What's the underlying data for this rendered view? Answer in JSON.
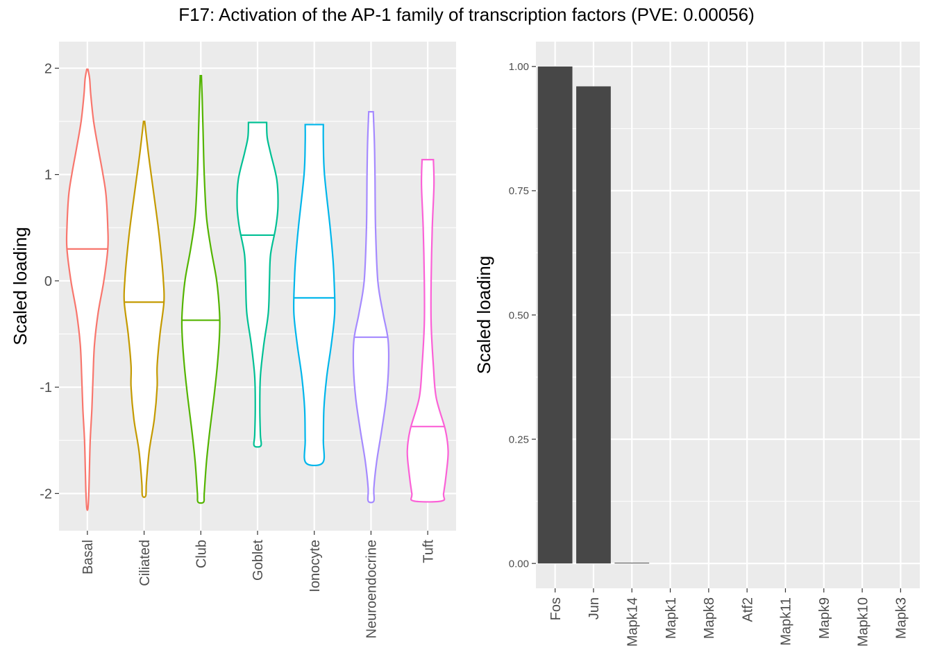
{
  "title": "F17: Activation of the AP-1 family of transcription factors (PVE: 0.00056)",
  "chart_data": [
    {
      "type": "violin",
      "ylabel": "Scaled loading",
      "ylim": [
        -2.35,
        2.25
      ],
      "y_ticks": [
        -2,
        -1,
        0,
        1,
        2
      ],
      "y_tick_labels": [
        "-2",
        "-1",
        "0",
        "1",
        "2"
      ],
      "grid": true,
      "categories": [
        "Basal",
        "Ciliated",
        "Club",
        "Goblet",
        "Ionocyte",
        "Neuroendocrine",
        "Tuft"
      ],
      "colors": [
        "#F8766D",
        "#C49A00",
        "#53B400",
        "#00C094",
        "#00B6EB",
        "#A58AFF",
        "#FB61D7"
      ],
      "medians": [
        0.3,
        -0.2,
        -0.37,
        0.43,
        -0.16,
        -0.53,
        -1.37
      ],
      "ranges": [
        [
          -2.14,
          1.99
        ],
        [
          -2.02,
          1.5
        ],
        [
          -2.08,
          1.93
        ],
        [
          -1.55,
          1.49
        ],
        [
          -1.71,
          1.47
        ],
        [
          -2.07,
          1.59
        ],
        [
          -2.07,
          1.14
        ]
      ],
      "profiles": [
        [
          [
            1.99,
            0.02
          ],
          [
            1.9,
            0.08
          ],
          [
            1.75,
            0.12
          ],
          [
            1.5,
            0.22
          ],
          [
            1.25,
            0.38
          ],
          [
            1.0,
            0.55
          ],
          [
            0.8,
            0.66
          ],
          [
            0.5,
            0.72
          ],
          [
            0.3,
            0.72
          ],
          [
            0.0,
            0.58
          ],
          [
            -0.3,
            0.38
          ],
          [
            -0.6,
            0.25
          ],
          [
            -0.9,
            0.2
          ],
          [
            -1.2,
            0.16
          ],
          [
            -1.5,
            0.1
          ],
          [
            -1.8,
            0.07
          ],
          [
            -2.0,
            0.05
          ],
          [
            -2.14,
            0.02
          ]
        ],
        [
          [
            1.5,
            0.02
          ],
          [
            1.2,
            0.15
          ],
          [
            0.9,
            0.3
          ],
          [
            0.5,
            0.5
          ],
          [
            0.2,
            0.62
          ],
          [
            0.0,
            0.68
          ],
          [
            -0.2,
            0.7
          ],
          [
            -0.5,
            0.56
          ],
          [
            -0.8,
            0.46
          ],
          [
            -1.0,
            0.46
          ],
          [
            -1.3,
            0.36
          ],
          [
            -1.6,
            0.18
          ],
          [
            -1.9,
            0.08
          ],
          [
            -2.02,
            0.06
          ]
        ],
        [
          [
            1.93,
            0.02
          ],
          [
            1.7,
            0.05
          ],
          [
            1.4,
            0.08
          ],
          [
            1.0,
            0.12
          ],
          [
            0.6,
            0.2
          ],
          [
            0.3,
            0.36
          ],
          [
            0.0,
            0.56
          ],
          [
            -0.3,
            0.66
          ],
          [
            -0.5,
            0.66
          ],
          [
            -0.8,
            0.58
          ],
          [
            -1.1,
            0.46
          ],
          [
            -1.4,
            0.32
          ],
          [
            -1.7,
            0.2
          ],
          [
            -2.0,
            0.12
          ],
          [
            -2.08,
            0.1
          ]
        ],
        [
          [
            1.49,
            0.32
          ],
          [
            1.35,
            0.34
          ],
          [
            1.2,
            0.46
          ],
          [
            0.95,
            0.68
          ],
          [
            0.7,
            0.72
          ],
          [
            0.5,
            0.64
          ],
          [
            0.25,
            0.46
          ],
          [
            0.0,
            0.42
          ],
          [
            -0.3,
            0.38
          ],
          [
            -0.6,
            0.22
          ],
          [
            -0.9,
            0.1
          ],
          [
            -1.2,
            0.08
          ],
          [
            -1.45,
            0.1
          ],
          [
            -1.55,
            0.12
          ]
        ],
        [
          [
            1.47,
            0.32
          ],
          [
            1.3,
            0.32
          ],
          [
            1.0,
            0.36
          ],
          [
            0.5,
            0.56
          ],
          [
            0.2,
            0.66
          ],
          [
            0.0,
            0.7
          ],
          [
            -0.3,
            0.72
          ],
          [
            -0.6,
            0.6
          ],
          [
            -0.9,
            0.44
          ],
          [
            -1.2,
            0.34
          ],
          [
            -1.5,
            0.32
          ],
          [
            -1.71,
            0.3
          ]
        ],
        [
          [
            1.59,
            0.08
          ],
          [
            1.3,
            0.12
          ],
          [
            1.0,
            0.14
          ],
          [
            0.5,
            0.16
          ],
          [
            0.0,
            0.24
          ],
          [
            -0.3,
            0.42
          ],
          [
            -0.55,
            0.6
          ],
          [
            -0.8,
            0.62
          ],
          [
            -1.1,
            0.54
          ],
          [
            -1.4,
            0.38
          ],
          [
            -1.7,
            0.2
          ],
          [
            -1.95,
            0.1
          ],
          [
            -2.07,
            0.1
          ]
        ],
        [
          [
            1.14,
            0.2
          ],
          [
            0.9,
            0.22
          ],
          [
            0.5,
            0.16
          ],
          [
            0.0,
            0.12
          ],
          [
            -0.4,
            0.12
          ],
          [
            -0.8,
            0.2
          ],
          [
            -1.1,
            0.3
          ],
          [
            -1.4,
            0.62
          ],
          [
            -1.6,
            0.72
          ],
          [
            -1.8,
            0.66
          ],
          [
            -2.0,
            0.56
          ],
          [
            -2.07,
            0.5
          ]
        ]
      ]
    },
    {
      "type": "bar",
      "ylabel": "Scaled loading",
      "ylim": [
        -0.05,
        1.05
      ],
      "y_ticks": [
        0,
        0.25,
        0.5,
        0.75,
        1.0
      ],
      "y_tick_labels": [
        "0.00",
        "0.25",
        "0.50",
        "0.75",
        "1.00"
      ],
      "grid": true,
      "bar_color": "#474747",
      "categories": [
        "Fos",
        "Jun",
        "Mapk14",
        "Mapk1",
        "Mapk8",
        "Atf2",
        "Mapk11",
        "Mapk9",
        "Mapk10",
        "Mapk3"
      ],
      "values": [
        1.0,
        0.96,
        0.001,
        0.0,
        0.0,
        0.0,
        0.0,
        0.0,
        0.0,
        0.0
      ]
    }
  ]
}
